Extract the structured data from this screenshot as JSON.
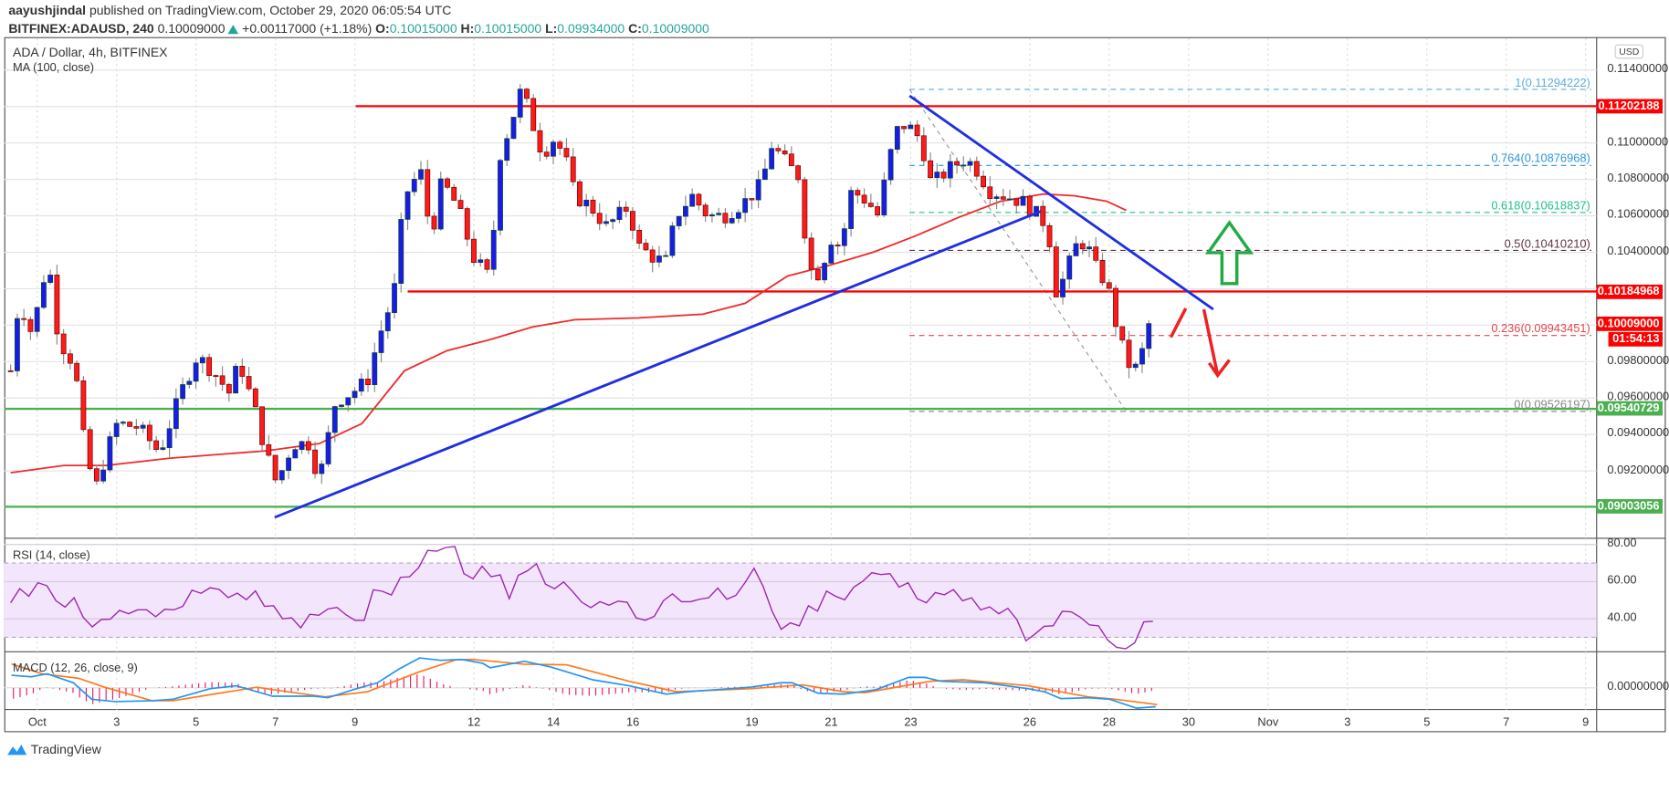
{
  "header": {
    "author": "aayushjindal",
    "published": "published on TradingView.com, October 29, 2020 06:05:54 UTC",
    "symbol": "BITFINEX:ADAUSD, 240",
    "last": "0.10009000",
    "change": "+0.00117000 (+1.18%)",
    "o_label": "O:",
    "o": "0.10015000",
    "h_label": "H:",
    "h": "0.10015000",
    "l_label": "L:",
    "l": "0.09934000",
    "c_label": "C:",
    "c": "0.10009000"
  },
  "pane": {
    "title": "ADA / Dollar, 4h, BITFINEX",
    "ma_label": "MA (100, close)",
    "currency": "USD",
    "rsi_label": "RSI (14, close)",
    "macd_label": "MACD (12, 26, close, 9)",
    "countdown": "01:54:13"
  },
  "logo": "TradingView",
  "colors": {
    "up": "#1a1aee",
    "down": "#ff1a1a",
    "ma": "#ef2b2b",
    "trend": "#1f2fe0",
    "rsi": "#9c27b0",
    "macd": "#2196f3",
    "signal": "#ff7a1a",
    "hist": "#e91e63",
    "support": "#4caf50",
    "resistance": "#ff0000"
  },
  "chart_data": {
    "type": "candlestick",
    "title": "ADA / Dollar, 4h, BITFINEX",
    "price_ticks": [
      "0.11400000",
      "0.11000000",
      "0.10800000",
      "0.10600000",
      "0.10400000",
      "0.09800000",
      "0.09600000",
      "0.09400000",
      "0.09200000"
    ],
    "price_tick_values": [
      0.114,
      0.11,
      0.108,
      0.106,
      0.104,
      0.098,
      0.096,
      0.094,
      0.092
    ],
    "time_ticks": [
      {
        "d": 1,
        "t": "Oct"
      },
      {
        "d": 3,
        "t": "3"
      },
      {
        "d": 5,
        "t": "5"
      },
      {
        "d": 7,
        "t": "7"
      },
      {
        "d": 9,
        "t": "9"
      },
      {
        "d": 12,
        "t": "12"
      },
      {
        "d": 14,
        "t": "14"
      },
      {
        "d": 16,
        "t": "16"
      },
      {
        "d": 19,
        "t": "19"
      },
      {
        "d": 21,
        "t": "21"
      },
      {
        "d": 23,
        "t": "23"
      },
      {
        "d": 26,
        "t": "26"
      },
      {
        "d": 28,
        "t": "28"
      },
      {
        "d": 30,
        "t": "30"
      },
      {
        "d": 32,
        "t": "Nov"
      },
      {
        "d": 34,
        "t": "3"
      },
      {
        "d": 36,
        "t": "5"
      },
      {
        "d": 38,
        "t": "7"
      },
      {
        "d": 40,
        "t": "9"
      }
    ],
    "close_path": [
      [
        0.33,
        0.0975
      ],
      [
        0.54,
        0.1014
      ],
      [
        0.87,
        0.0995
      ],
      [
        1.27,
        0.1037
      ],
      [
        1.54,
        0.0992
      ],
      [
        1.94,
        0.0978
      ],
      [
        2.21,
        0.093
      ],
      [
        2.47,
        0.091
      ],
      [
        2.74,
        0.093
      ],
      [
        3.01,
        0.0946
      ],
      [
        3.55,
        0.0944
      ],
      [
        4.08,
        0.093
      ],
      [
        4.62,
        0.0963
      ],
      [
        5.02,
        0.0983
      ],
      [
        5.42,
        0.0975
      ],
      [
        5.83,
        0.0963
      ],
      [
        6.09,
        0.098
      ],
      [
        6.5,
        0.0952
      ],
      [
        6.76,
        0.093
      ],
      [
        7.03,
        0.0913
      ],
      [
        7.43,
        0.0935
      ],
      [
        7.84,
        0.0935
      ],
      [
        8.1,
        0.0915
      ],
      [
        8.51,
        0.0958
      ],
      [
        8.91,
        0.0963
      ],
      [
        9.31,
        0.0969
      ],
      [
        9.58,
        0.0992
      ],
      [
        9.98,
        0.1017
      ],
      [
        10.25,
        0.1071
      ],
      [
        10.65,
        0.1085
      ],
      [
        10.92,
        0.1048
      ],
      [
        11.19,
        0.1079
      ],
      [
        11.59,
        0.1065
      ],
      [
        11.99,
        0.1037
      ],
      [
        12.39,
        0.1026
      ],
      [
        12.66,
        0.1094
      ],
      [
        12.93,
        0.1111
      ],
      [
        13.2,
        0.113
      ],
      [
        13.47,
        0.1111
      ],
      [
        13.73,
        0.1094
      ],
      [
        14.0,
        0.1102
      ],
      [
        14.27,
        0.1094
      ],
      [
        14.54,
        0.1071
      ],
      [
        14.94,
        0.1065
      ],
      [
        15.34,
        0.1054
      ],
      [
        15.88,
        0.1065
      ],
      [
        16.15,
        0.1043
      ],
      [
        16.55,
        0.1037
      ],
      [
        16.82,
        0.1034
      ],
      [
        17.09,
        0.106
      ],
      [
        17.49,
        0.1071
      ],
      [
        17.89,
        0.106
      ],
      [
        18.29,
        0.106
      ],
      [
        18.83,
        0.1068
      ],
      [
        19.23,
        0.1077
      ],
      [
        19.5,
        0.1099
      ],
      [
        19.9,
        0.1088
      ],
      [
        20.17,
        0.1082
      ],
      [
        20.44,
        0.1031
      ],
      [
        20.71,
        0.1028
      ],
      [
        20.97,
        0.1048
      ],
      [
        21.24,
        0.1043
      ],
      [
        21.51,
        0.1074
      ],
      [
        21.91,
        0.1068
      ],
      [
        22.18,
        0.106
      ],
      [
        22.45,
        0.1091
      ],
      [
        22.72,
        0.1111
      ],
      [
        22.99,
        0.1108
      ],
      [
        23.25,
        0.1102
      ],
      [
        23.52,
        0.1077
      ],
      [
        23.92,
        0.1085
      ],
      [
        24.32,
        0.1091
      ],
      [
        24.59,
        0.1088
      ],
      [
        24.99,
        0.1074
      ],
      [
        25.4,
        0.1071
      ],
      [
        25.8,
        0.1068
      ],
      [
        26.2,
        0.106
      ],
      [
        26.47,
        0.1054
      ],
      [
        26.6,
        0.1017
      ],
      [
        26.87,
        0.1026
      ],
      [
        27.14,
        0.1043
      ],
      [
        27.4,
        0.1046
      ],
      [
        27.67,
        0.1031
      ],
      [
        27.94,
        0.1023
      ],
      [
        28.21,
        0.0997
      ],
      [
        28.43,
        0.098
      ],
      [
        28.64,
        0.0975
      ],
      [
        28.86,
        0.0987
      ],
      [
        29.07,
        0.10009
      ]
    ],
    "ma100": [
      [
        0.33,
        0.0919
      ],
      [
        1.67,
        0.0923
      ],
      [
        2.74,
        0.0923
      ],
      [
        4.35,
        0.0927
      ],
      [
        6.76,
        0.0931
      ],
      [
        8.1,
        0.0935
      ],
      [
        9.18,
        0.0946
      ],
      [
        10.25,
        0.0975
      ],
      [
        11.32,
        0.0986
      ],
      [
        12.39,
        0.0992
      ],
      [
        13.47,
        0.0999
      ],
      [
        14.54,
        0.1003
      ],
      [
        16.15,
        0.1004
      ],
      [
        17.76,
        0.1006
      ],
      [
        18.83,
        0.1012
      ],
      [
        19.9,
        0.1027
      ],
      [
        20.97,
        0.1033
      ],
      [
        22.05,
        0.104
      ],
      [
        23.12,
        0.1049
      ],
      [
        24.19,
        0.1059
      ],
      [
        25.26,
        0.1068
      ],
      [
        26.34,
        0.1072
      ],
      [
        27.14,
        0.1071
      ],
      [
        27.94,
        0.1068
      ],
      [
        28.43,
        0.1063
      ]
    ],
    "rsi_ticks": [
      "80.00",
      "60.00",
      "40.00"
    ],
    "rsi_tick_values": [
      80,
      60,
      40
    ],
    "rsi_band": [
      30,
      70
    ],
    "rsi_range": [
      0.33,
      29.1
    ],
    "rsi": [
      48.6,
      56.2,
      52.1,
      59.4,
      57.8,
      49.7,
      46.3,
      51.3,
      40.8,
      35.6,
      39.6,
      39.8,
      44.5,
      42.7,
      44.8,
      44.8,
      41.1,
      45.1,
      44.8,
      46.7,
      55.4,
      53.7,
      56.7,
      55.8,
      51.4,
      53.8,
      50.3,
      55,
      46.7,
      47,
      40,
      40.5,
      35.1,
      42.4,
      41.9,
      45.3,
      46.1,
      42.1,
      39.1,
      39.1,
      55.6,
      54.8,
      52.8,
      62.3,
      62.6,
      67.5,
      76.8,
      76.4,
      78.4,
      78.9,
      64.3,
      61.5,
      68.3,
      62.6,
      63.7,
      50.8,
      63.4,
      65.8,
      69.6,
      58.6,
      56.2,
      59.8,
      54.6,
      48.9,
      46,
      49.2,
      47.3,
      49.5,
      48.9,
      40.5,
      39.2,
      41.3,
      49.7,
      53.4,
      49.2,
      49.2,
      50.5,
      51.3,
      56.5,
      50.5,
      52.6,
      59.4,
      67.2,
      57.5,
      44,
      34.3,
      37.8,
      36.2,
      47,
      44.1,
      54.9,
      52.1,
      50.2,
      57,
      60.2,
      64.8,
      63.8,
      64.3,
      57,
      59.4,
      50.8,
      48.6,
      54.1,
      52.9,
      55.7,
      49.7,
      51.3,
      44.8,
      46.4,
      42.7,
      45.6,
      39.5,
      28.1,
      31.8,
      35.9,
      36.2,
      44,
      43.7,
      40.8,
      36.7,
      36.2,
      28.6,
      24.6,
      23.8,
      27.1,
      38.3,
      38.6
    ],
    "macd_tick": "0.00000000",
    "macd": [
      [
        0.35,
        0.00042
      ],
      [
        0.85,
        0.00037
      ],
      [
        1.25,
        0.00047
      ],
      [
        1.91,
        0.00017
      ],
      [
        2.37,
        -0.00038
      ],
      [
        2.97,
        -0.00046
      ],
      [
        3.89,
        -0.00043
      ],
      [
        4.42,
        -0.00038
      ],
      [
        5.35,
        -3e-05
      ],
      [
        6.01,
        7e-05
      ],
      [
        6.93,
        -0.00028
      ],
      [
        7.99,
        -0.00028
      ],
      [
        8.32,
        -0.00033
      ],
      [
        9.04,
        -3e-05
      ],
      [
        9.57,
        0.00017
      ],
      [
        10.1,
        0.00062
      ],
      [
        10.63,
        0.001
      ],
      [
        11.16,
        0.00092
      ],
      [
        11.69,
        0.00095
      ],
      [
        12.22,
        0.00082
      ],
      [
        12.41,
        0.00067
      ],
      [
        13.27,
        0.00089
      ],
      [
        13.93,
        0.0007
      ],
      [
        14.99,
        0.00027
      ],
      [
        15.91,
        7e-05
      ],
      [
        16.84,
        -0.00021
      ],
      [
        17.37,
        -0.00013
      ],
      [
        18.95,
        2e-05
      ],
      [
        19.74,
        0.00017
      ],
      [
        20.01,
        0.00017
      ],
      [
        20.67,
        -0.00018
      ],
      [
        21.31,
        -0.00021
      ],
      [
        22.13,
        -6e-05
      ],
      [
        22.95,
        0.00035
      ],
      [
        23.36,
        0.00035
      ],
      [
        23.77,
        0.00022
      ],
      [
        24.86,
        0.00017
      ],
      [
        25.96,
        -3e-05
      ],
      [
        26.37,
        -0.00013
      ],
      [
        26.78,
        -0.00036
      ],
      [
        27.46,
        -0.00033
      ],
      [
        28.01,
        -0.00038
      ],
      [
        28.69,
        -0.00068
      ],
      [
        29.17,
        -0.00063
      ]
    ],
    "signal": [
      [
        0.35,
        0.0008
      ],
      [
        1.12,
        0.00047
      ],
      [
        2.04,
        0.00032
      ],
      [
        2.7,
        2e-05
      ],
      [
        3.89,
        -0.00043
      ],
      [
        4.42,
        -0.00043
      ],
      [
        5.35,
        -0.00023
      ],
      [
        6.53,
        2e-05
      ],
      [
        7.46,
        -0.00016
      ],
      [
        8.25,
        -0.0003
      ],
      [
        9.31,
        -0.00013
      ],
      [
        10.63,
        0.00054
      ],
      [
        11.55,
        0.00094
      ],
      [
        11.95,
        0.00095
      ],
      [
        13.27,
        0.00079
      ],
      [
        14.33,
        0.00077
      ],
      [
        15.91,
        0.00022
      ],
      [
        17.1,
        -0.00013
      ],
      [
        18.95,
        -3e-05
      ],
      [
        20.27,
        0.0001
      ],
      [
        21.31,
        -0.00013
      ],
      [
        21.85,
        -0.00016
      ],
      [
        23.5,
        0.00022
      ],
      [
        24.32,
        0.00027
      ],
      [
        25.96,
        7e-05
      ],
      [
        27.46,
        -0.0003
      ],
      [
        28.15,
        -0.00038
      ],
      [
        29.21,
        -0.00056
      ]
    ],
    "horizontal_levels": [
      {
        "price": 0.11202188,
        "label": "0.11202188",
        "color": "#ff0000",
        "from": 9.02
      },
      {
        "price": 0.10184968,
        "label": "0.10184968",
        "color": "#ff0000",
        "from": 10.33
      },
      {
        "price": 0.09540729,
        "label": "0.09540729",
        "color": "#4caf50",
        "from": 0.0
      },
      {
        "price": 0.09003056,
        "label": "0.09003056",
        "color": "#4caf50",
        "from": 0.0
      }
    ],
    "last_price": {
      "price": 0.10009,
      "label": "0.10009000"
    },
    "trendlines": [
      {
        "name": "rising-support",
        "from": [
          6.98,
          0.08945
        ],
        "to": [
          26.28,
          0.10625
        ]
      },
      {
        "name": "falling-resistance",
        "from": [
          22.97,
          0.11259
        ],
        "to": [
          30.62,
          0.10087
        ]
      }
    ],
    "fib": {
      "from_day": 22.97,
      "swing": [
        [
          22.97,
          0.11294222
        ],
        [
          28.43,
          0.09526197
        ]
      ],
      "levels": [
        {
          "label": "1(0.11294222)",
          "price": 0.11294222,
          "color": "#5aaedc"
        },
        {
          "label": "0.764(0.10876968)",
          "price": 0.10876968,
          "color": "#2f96d6"
        },
        {
          "label": "0.618(0.10618837)",
          "price": 0.10618837,
          "color": "#23c08a"
        },
        {
          "label": "0.5(0.10410210)",
          "price": 0.1041021,
          "color": "#5d3446"
        },
        {
          "label": "0.236(0.09943451)",
          "price": 0.09943451,
          "color": "#e0474c"
        },
        {
          "label": "0(0.09526197)",
          "price": 0.09526197,
          "color": "#888888"
        }
      ]
    }
  }
}
